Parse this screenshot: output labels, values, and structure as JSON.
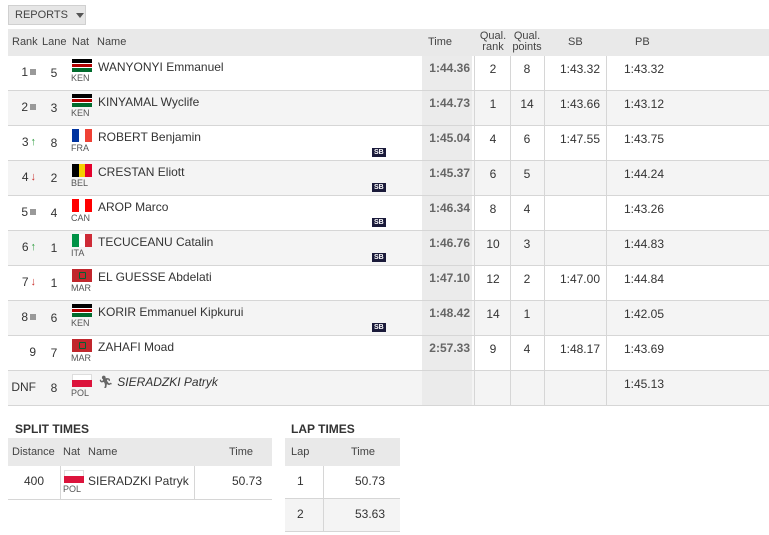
{
  "reports_label": "REPORTS",
  "headers": {
    "rank": "Rank",
    "lane": "Lane",
    "nat": "Nat",
    "name": "Name",
    "time": "Time",
    "qual_rank_1": "Qual.",
    "qual_rank_2": "rank",
    "qual_points_1": "Qual.",
    "qual_points_2": "points",
    "sb": "SB",
    "pb": "PB"
  },
  "results": [
    {
      "rank": "1",
      "move": "same",
      "lane": "5",
      "nat": "KEN",
      "name": "WANYONYI Emmanuel",
      "time": "1:44.36",
      "qrank": "2",
      "qpts": "8",
      "sb": "1:43.32",
      "pb": "1:43.32",
      "badge": ""
    },
    {
      "rank": "2",
      "move": "same",
      "lane": "3",
      "nat": "KEN",
      "name": "KINYAMAL Wyclife",
      "time": "1:44.73",
      "qrank": "1",
      "qpts": "14",
      "sb": "1:43.66",
      "pb": "1:43.12",
      "badge": ""
    },
    {
      "rank": "3",
      "move": "up",
      "lane": "8",
      "nat": "FRA",
      "name": "ROBERT Benjamin",
      "time": "1:45.04",
      "qrank": "4",
      "qpts": "6",
      "sb": "1:47.55",
      "pb": "1:43.75",
      "badge": "SB"
    },
    {
      "rank": "4",
      "move": "down",
      "lane": "2",
      "nat": "BEL",
      "name": "CRESTAN Eliott",
      "time": "1:45.37",
      "qrank": "6",
      "qpts": "5",
      "sb": "",
      "pb": "1:44.24",
      "badge": "SB"
    },
    {
      "rank": "5",
      "move": "same",
      "lane": "4",
      "nat": "CAN",
      "name": "AROP Marco",
      "time": "1:46.34",
      "qrank": "8",
      "qpts": "4",
      "sb": "",
      "pb": "1:43.26",
      "badge": "SB"
    },
    {
      "rank": "6",
      "move": "up",
      "lane": "1",
      "nat": "ITA",
      "name": "TECUCEANU Catalin",
      "time": "1:46.76",
      "qrank": "10",
      "qpts": "3",
      "sb": "",
      "pb": "1:44.83",
      "badge": "SB"
    },
    {
      "rank": "7",
      "move": "down",
      "lane": "1",
      "nat": "MAR",
      "name": "EL GUESSE Abdelati",
      "time": "1:47.10",
      "qrank": "12",
      "qpts": "2",
      "sb": "1:47.00",
      "pb": "1:44.84",
      "badge": ""
    },
    {
      "rank": "8",
      "move": "same",
      "lane": "6",
      "nat": "KEN",
      "name": "KORIR Emmanuel Kipkurui",
      "time": "1:48.42",
      "qrank": "14",
      "qpts": "1",
      "sb": "",
      "pb": "1:42.05",
      "badge": "SB"
    },
    {
      "rank": "9",
      "move": "",
      "lane": "7",
      "nat": "MAR",
      "name": "ZAHAFI Moad",
      "time": "2:57.33",
      "qrank": "9",
      "qpts": "4",
      "sb": "1:48.17",
      "pb": "1:43.69",
      "badge": ""
    },
    {
      "rank": "DNF",
      "move": "",
      "lane": "8",
      "nat": "POL",
      "name": "SIERADZKI Patryk",
      "time": "",
      "qrank": "",
      "qpts": "",
      "sb": "",
      "pb": "1:45.13",
      "badge": "",
      "italic": true
    }
  ],
  "split_times": {
    "title": "SPLIT TIMES",
    "headers": {
      "distance": "Distance",
      "nat": "Nat",
      "name": "Name",
      "time": "Time"
    },
    "rows": [
      {
        "distance": "400",
        "nat": "POL",
        "name": "SIERADZKI Patryk",
        "time": "50.73"
      }
    ]
  },
  "lap_times": {
    "title": "LAP TIMES",
    "headers": {
      "lap": "Lap",
      "time": "Time"
    },
    "rows": [
      {
        "lap": "1",
        "time": "50.73"
      },
      {
        "lap": "2",
        "time": "53.63"
      }
    ]
  },
  "flag_colors": {
    "KEN": [
      "#000000",
      "#b00000",
      "#006b2d"
    ],
    "FRA": [
      "#0033a0",
      "#ffffff",
      "#ef4135"
    ],
    "BEL": [
      "#000000",
      "#f5d000",
      "#e4002b"
    ],
    "CAN": [
      "#ff0000",
      "#ffffff",
      "#ff0000"
    ],
    "ITA": [
      "#009246",
      "#ffffff",
      "#ce2b37"
    ],
    "MAR": [
      "#c1272d",
      "#c1272d",
      "#c1272d"
    ],
    "POL": [
      "#ffffff",
      "#dc143c",
      "#dc143c"
    ]
  }
}
